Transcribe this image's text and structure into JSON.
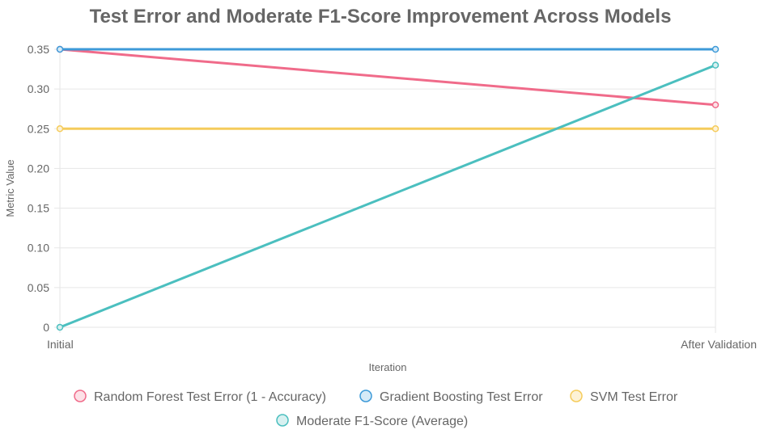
{
  "chart_data": {
    "type": "line",
    "title": "Test Error and Moderate F1-Score Improvement Across Models",
    "xlabel": "Iteration",
    "ylabel": "Metric Value",
    "categories": [
      "Initial",
      "After Validation"
    ],
    "ylim": [
      0,
      0.35
    ],
    "yticks": [
      "0",
      "0.05",
      "0.10",
      "0.15",
      "0.20",
      "0.25",
      "0.30",
      "0.35"
    ],
    "grid": true,
    "legend_position": "bottom",
    "series": [
      {
        "name": "Random Forest Test Error (1 - Accuracy)",
        "values": [
          0.35,
          0.28
        ],
        "color": "#f06b8a",
        "fill": "#fde1e7"
      },
      {
        "name": "Gradient Boosting Test Error",
        "values": [
          0.35,
          0.35
        ],
        "color": "#3d9ad8",
        "fill": "#d6eaf7"
      },
      {
        "name": "SVM Test Error",
        "values": [
          0.25,
          0.25
        ],
        "color": "#f5cc5c",
        "fill": "#fdf2d6"
      },
      {
        "name": "Moderate F1-Score (Average)",
        "values": [
          0.0,
          0.33
        ],
        "color": "#4bbfbf",
        "fill": "#d8f1f1"
      }
    ]
  }
}
